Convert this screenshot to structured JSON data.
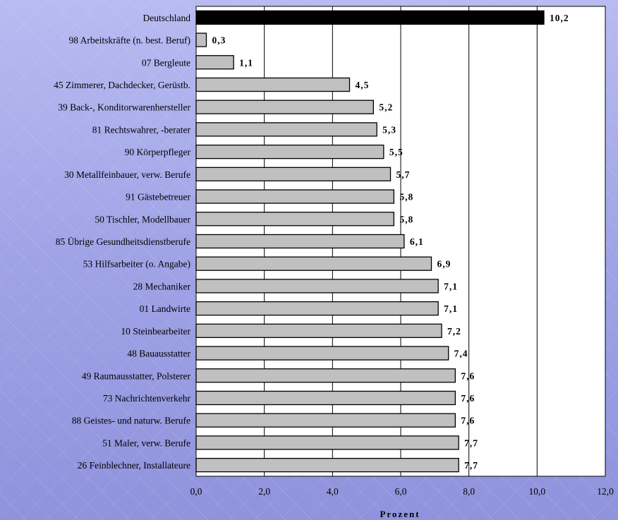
{
  "chart_data": {
    "type": "bar",
    "orientation": "horizontal",
    "categories": [
      "Deutschland",
      "98 Arbeitskräfte (n. best. Beruf)",
      "07 Bergleute",
      "45 Zimmerer, Dachdecker, Gerüstb.",
      "39 Back-, Konditorwarenhersteller",
      "81 Rechtswahrer, -berater",
      "90 Körperpfleger",
      "30 Metallfeinbauer, verw. Berufe",
      "91 Gästebetreuer",
      "50 Tischler, Modellbauer",
      "85 Übrige Gesundheitsdienstberufe",
      "53 Hilfsarbeiter (o. Angabe)",
      "28 Mechaniker",
      "01 Landwirte",
      "10 Steinbearbeiter",
      "48 Bauausstatter",
      "49 Raumausstatter, Polsterer",
      "73 Nachrichtenverkehr",
      "88 Geistes- und naturw. Berufe",
      "51 Maler, verw. Berufe",
      "26 Feinblechner, Installateure"
    ],
    "values": [
      10.2,
      0.3,
      1.1,
      4.5,
      5.2,
      5.3,
      5.5,
      5.7,
      5.8,
      5.8,
      6.1,
      6.9,
      7.1,
      7.1,
      7.2,
      7.4,
      7.6,
      7.6,
      7.6,
      7.7,
      7.7
    ],
    "value_labels": [
      "10,2",
      "0,3",
      "1,1",
      "4,5",
      "5,2",
      "5,3",
      "5,5",
      "5,7",
      "5,8",
      "5,8",
      "6,1",
      "6,9",
      "7,1",
      "7,1",
      "7,2",
      "7,4",
      "7,6",
      "7,6",
      "7,6",
      "7,7",
      "7,7"
    ],
    "xlim": [
      0,
      12
    ],
    "x_ticks": [
      0,
      2,
      4,
      6,
      8,
      10,
      12
    ],
    "x_tick_labels": [
      "0,0",
      "2,0",
      "4,0",
      "6,0",
      "8,0",
      "10,0",
      "12,0"
    ],
    "xlabel": "Prozent",
    "grid": "vertical",
    "colors": {
      "highlight_bar": "#000000",
      "bar": "#c0c0c0",
      "bar_stroke": "#000000",
      "plot_background": "#ffffff"
    }
  }
}
